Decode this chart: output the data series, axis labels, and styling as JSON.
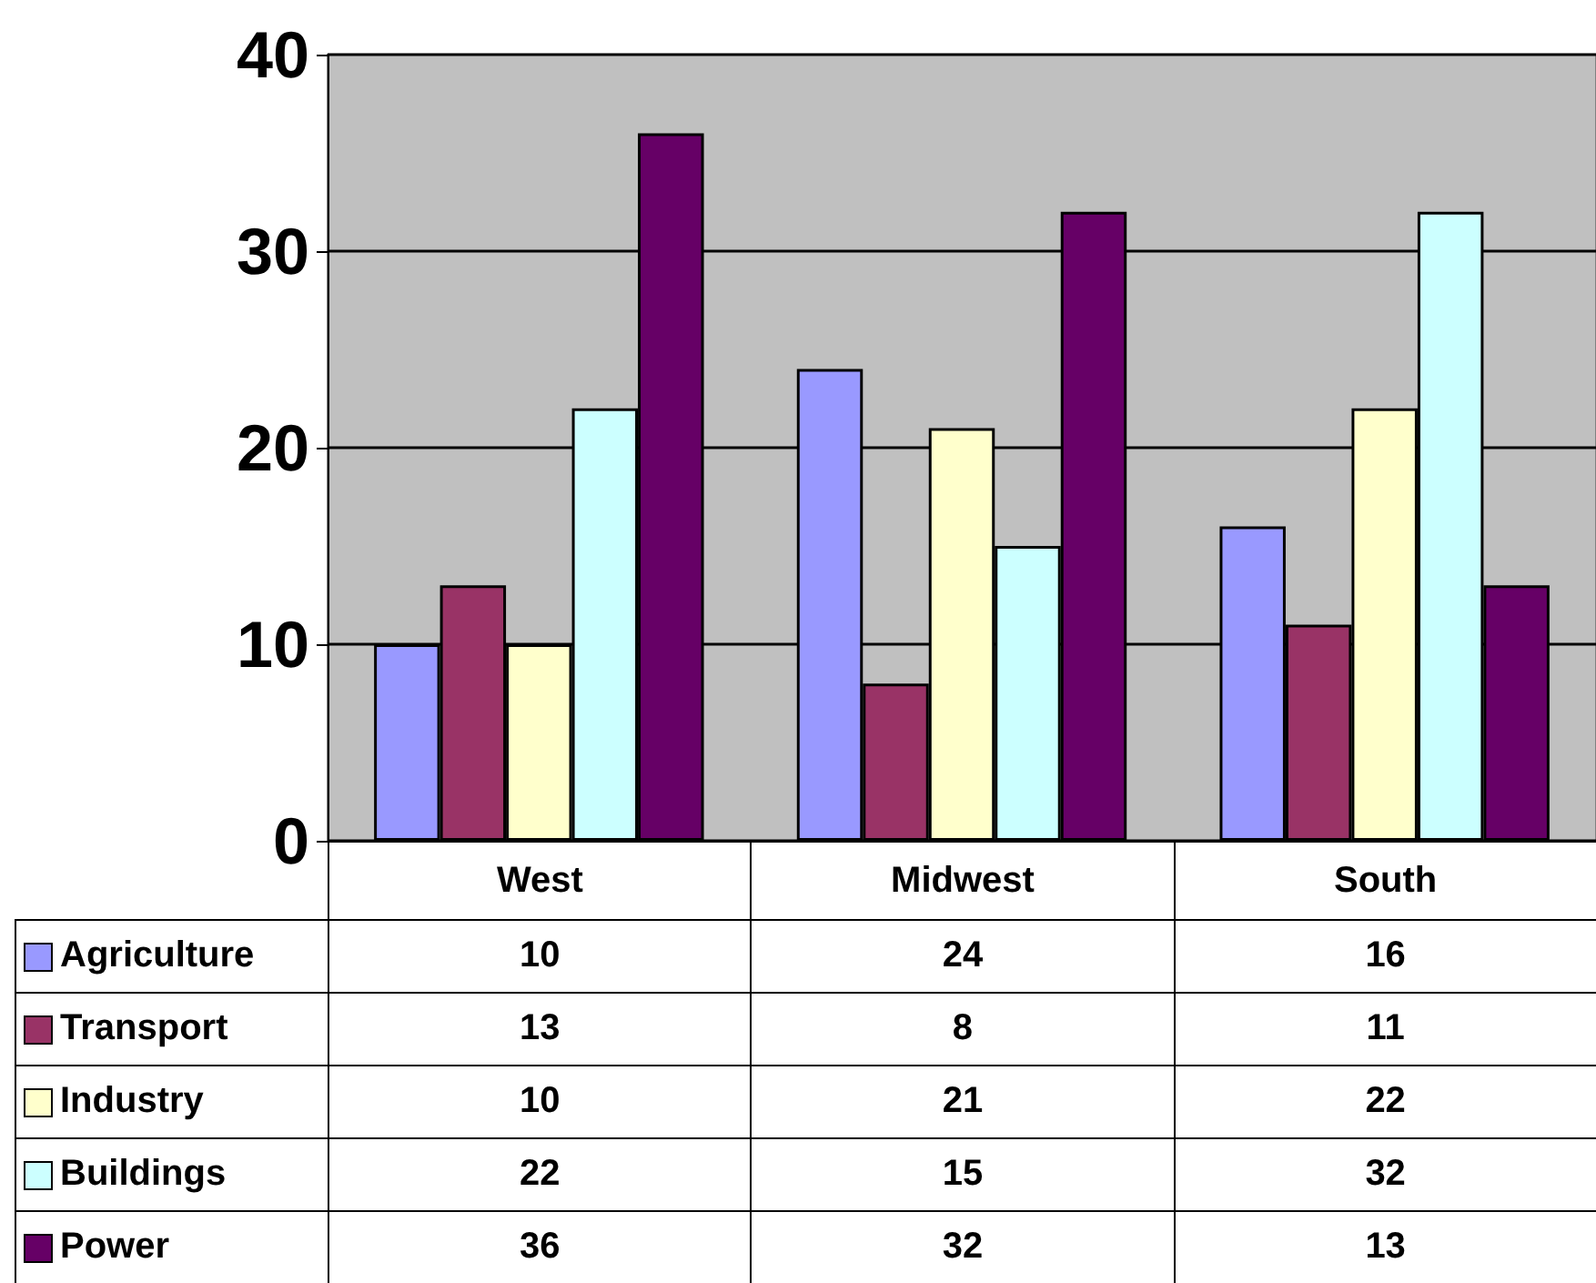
{
  "chart_data": {
    "type": "bar",
    "categories": [
      "West",
      "Midwest",
      "South"
    ],
    "series": [
      {
        "name": "Agriculture",
        "color": "#9999ff",
        "values": [
          10,
          24,
          16
        ]
      },
      {
        "name": "Transport",
        "color": "#993366",
        "values": [
          13,
          8,
          11
        ]
      },
      {
        "name": "Industry",
        "color": "#ffffcc",
        "values": [
          10,
          21,
          22
        ]
      },
      {
        "name": "Buildings",
        "color": "#ccffff",
        "values": [
          22,
          15,
          32
        ]
      },
      {
        "name": "Power",
        "color": "#660066",
        "values": [
          36,
          32,
          13
        ]
      }
    ],
    "ylim": [
      0,
      40
    ],
    "yticks": [
      0,
      10,
      20,
      30,
      40
    ],
    "grid": "y",
    "legend": "bottom left",
    "data_labels": true
  }
}
